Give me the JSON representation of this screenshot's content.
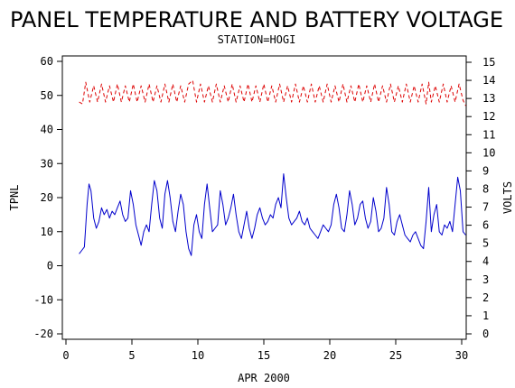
{
  "chart_data": {
    "type": "line",
    "title": "PANEL TEMPERATURE AND BATTERY VOLTAGE",
    "subtitle": "STATION=HOGI",
    "xlabel": "APR 2000",
    "ylabel_left": "TPNL",
    "ylabel_right": "VOLTS",
    "xlim": [
      0,
      30
    ],
    "ylim_left": [
      -22,
      62
    ],
    "ylim_right": [
      0,
      15
    ],
    "x_ticks": [
      "0",
      "5",
      "10",
      "15",
      "20",
      "25",
      "30"
    ],
    "y_left_ticks": [
      "-20",
      "-10",
      "0",
      "10",
      "20",
      "30",
      "40",
      "50",
      "60"
    ],
    "y_right_ticks": [
      "0",
      "1",
      "2",
      "3",
      "4",
      "5",
      "6",
      "7",
      "8",
      "9",
      "10",
      "11",
      "12",
      "13",
      "14",
      "15"
    ],
    "colors": {
      "temperature": "#0000cc",
      "voltage": "#dd0000",
      "axes": "#000000"
    },
    "grid": false,
    "series": [
      {
        "axis": "left",
        "style": "solid",
        "color": "#0000cc",
        "points": [
          [
            1.0,
            3.5
          ],
          [
            1.2,
            4.5
          ],
          [
            1.4,
            5.5
          ],
          [
            1.6,
            18
          ],
          [
            1.75,
            24
          ],
          [
            1.9,
            22
          ],
          [
            2.1,
            14
          ],
          [
            2.3,
            11
          ],
          [
            2.5,
            13
          ],
          [
            2.7,
            17
          ],
          [
            2.9,
            15
          ],
          [
            3.1,
            16.5
          ],
          [
            3.3,
            14
          ],
          [
            3.5,
            16
          ],
          [
            3.7,
            15
          ],
          [
            3.9,
            17
          ],
          [
            4.1,
            19
          ],
          [
            4.3,
            15
          ],
          [
            4.5,
            13
          ],
          [
            4.7,
            14
          ],
          [
            4.9,
            22
          ],
          [
            5.1,
            18
          ],
          [
            5.3,
            12
          ],
          [
            5.5,
            9
          ],
          [
            5.7,
            6
          ],
          [
            5.9,
            10
          ],
          [
            6.1,
            12
          ],
          [
            6.3,
            10
          ],
          [
            6.5,
            18
          ],
          [
            6.7,
            25
          ],
          [
            6.9,
            22
          ],
          [
            7.1,
            14
          ],
          [
            7.3,
            11
          ],
          [
            7.5,
            21
          ],
          [
            7.7,
            25
          ],
          [
            7.9,
            20
          ],
          [
            8.1,
            13
          ],
          [
            8.3,
            10
          ],
          [
            8.5,
            16
          ],
          [
            8.7,
            21
          ],
          [
            8.9,
            18
          ],
          [
            9.1,
            10
          ],
          [
            9.3,
            5
          ],
          [
            9.5,
            3
          ],
          [
            9.7,
            12
          ],
          [
            9.9,
            15
          ],
          [
            10.1,
            10
          ],
          [
            10.3,
            8
          ],
          [
            10.5,
            18
          ],
          [
            10.7,
            24
          ],
          [
            10.9,
            17
          ],
          [
            11.1,
            10
          ],
          [
            11.3,
            11
          ],
          [
            11.5,
            12
          ],
          [
            11.7,
            22
          ],
          [
            11.9,
            18
          ],
          [
            12.1,
            12
          ],
          [
            12.3,
            14
          ],
          [
            12.5,
            17
          ],
          [
            12.7,
            21
          ],
          [
            12.9,
            15
          ],
          [
            13.1,
            10
          ],
          [
            13.3,
            8
          ],
          [
            13.5,
            12
          ],
          [
            13.7,
            16
          ],
          [
            13.9,
            11
          ],
          [
            14.1,
            8
          ],
          [
            14.3,
            11
          ],
          [
            14.5,
            15
          ],
          [
            14.7,
            17
          ],
          [
            14.9,
            14
          ],
          [
            15.1,
            12
          ],
          [
            15.3,
            13
          ],
          [
            15.5,
            15
          ],
          [
            15.7,
            14
          ],
          [
            15.9,
            18
          ],
          [
            16.1,
            20
          ],
          [
            16.3,
            17
          ],
          [
            16.5,
            27
          ],
          [
            16.7,
            20
          ],
          [
            16.9,
            14
          ],
          [
            17.1,
            12
          ],
          [
            17.3,
            13
          ],
          [
            17.5,
            14
          ],
          [
            17.7,
            16
          ],
          [
            17.9,
            13
          ],
          [
            18.1,
            12
          ],
          [
            18.3,
            14
          ],
          [
            18.5,
            11
          ],
          [
            18.7,
            10
          ],
          [
            18.9,
            9
          ],
          [
            19.1,
            8
          ],
          [
            19.3,
            10
          ],
          [
            19.5,
            12
          ],
          [
            19.7,
            11
          ],
          [
            19.9,
            10
          ],
          [
            20.1,
            12
          ],
          [
            20.3,
            18
          ],
          [
            20.5,
            21
          ],
          [
            20.7,
            17
          ],
          [
            20.9,
            11
          ],
          [
            21.1,
            10
          ],
          [
            21.3,
            15
          ],
          [
            21.5,
            22
          ],
          [
            21.7,
            18
          ],
          [
            21.9,
            12
          ],
          [
            22.1,
            14
          ],
          [
            22.3,
            18
          ],
          [
            22.5,
            19
          ],
          [
            22.7,
            14
          ],
          [
            22.9,
            11
          ],
          [
            23.1,
            13
          ],
          [
            23.3,
            20
          ],
          [
            23.5,
            16
          ],
          [
            23.7,
            10
          ],
          [
            23.9,
            11
          ],
          [
            24.1,
            14
          ],
          [
            24.3,
            23
          ],
          [
            24.5,
            18
          ],
          [
            24.7,
            10
          ],
          [
            24.9,
            9
          ],
          [
            25.1,
            13
          ],
          [
            25.3,
            15
          ],
          [
            25.5,
            12
          ],
          [
            25.7,
            9
          ],
          [
            25.9,
            8
          ],
          [
            26.1,
            7
          ],
          [
            26.3,
            9
          ],
          [
            26.5,
            10
          ],
          [
            26.7,
            8
          ],
          [
            26.9,
            6
          ],
          [
            27.1,
            5
          ],
          [
            27.3,
            13
          ],
          [
            27.5,
            23
          ],
          [
            27.7,
            10
          ],
          [
            27.9,
            15
          ],
          [
            28.1,
            18
          ],
          [
            28.3,
            10
          ],
          [
            28.5,
            9
          ],
          [
            28.7,
            12
          ],
          [
            28.9,
            11
          ],
          [
            29.1,
            13
          ],
          [
            29.3,
            10
          ],
          [
            29.5,
            18
          ],
          [
            29.7,
            26
          ],
          [
            29.9,
            22
          ],
          [
            30.1,
            10
          ],
          [
            30.3,
            9
          ]
        ]
      },
      {
        "axis": "right",
        "style": "dashed",
        "color": "#dd0000",
        "points": [
          [
            1.0,
            12.8
          ],
          [
            1.25,
            12.7
          ],
          [
            1.5,
            13.9
          ],
          [
            1.8,
            12.8
          ],
          [
            2.1,
            13.7
          ],
          [
            2.4,
            12.8
          ],
          [
            2.7,
            13.8
          ],
          [
            3.0,
            12.8
          ],
          [
            3.3,
            13.7
          ],
          [
            3.6,
            12.8
          ],
          [
            3.9,
            13.8
          ],
          [
            4.2,
            12.8
          ],
          [
            4.5,
            13.7
          ],
          [
            4.8,
            12.8
          ],
          [
            5.1,
            13.8
          ],
          [
            5.4,
            12.8
          ],
          [
            5.7,
            13.7
          ],
          [
            6.0,
            12.8
          ],
          [
            6.3,
            13.8
          ],
          [
            6.6,
            12.8
          ],
          [
            6.9,
            13.7
          ],
          [
            7.2,
            12.8
          ],
          [
            7.5,
            13.8
          ],
          [
            7.8,
            12.8
          ],
          [
            8.1,
            13.8
          ],
          [
            8.4,
            12.8
          ],
          [
            8.7,
            13.7
          ],
          [
            9.0,
            12.8
          ],
          [
            9.3,
            13.8
          ],
          [
            9.6,
            14.0
          ],
          [
            9.9,
            12.8
          ],
          [
            10.2,
            13.8
          ],
          [
            10.5,
            12.8
          ],
          [
            10.8,
            13.7
          ],
          [
            11.1,
            12.8
          ],
          [
            11.4,
            13.8
          ],
          [
            11.7,
            12.8
          ],
          [
            12.0,
            13.7
          ],
          [
            12.3,
            12.8
          ],
          [
            12.6,
            13.8
          ],
          [
            12.9,
            12.8
          ],
          [
            13.2,
            13.7
          ],
          [
            13.5,
            12.8
          ],
          [
            13.8,
            13.8
          ],
          [
            14.1,
            12.8
          ],
          [
            14.4,
            13.7
          ],
          [
            14.7,
            12.8
          ],
          [
            15.0,
            13.8
          ],
          [
            15.3,
            12.8
          ],
          [
            15.6,
            13.7
          ],
          [
            15.9,
            12.8
          ],
          [
            16.2,
            13.8
          ],
          [
            16.5,
            12.8
          ],
          [
            16.8,
            13.7
          ],
          [
            17.1,
            12.8
          ],
          [
            17.4,
            13.8
          ],
          [
            17.7,
            12.8
          ],
          [
            18.0,
            13.7
          ],
          [
            18.3,
            12.8
          ],
          [
            18.6,
            13.8
          ],
          [
            18.9,
            12.8
          ],
          [
            19.2,
            13.7
          ],
          [
            19.5,
            12.8
          ],
          [
            19.8,
            13.8
          ],
          [
            20.1,
            12.8
          ],
          [
            20.4,
            13.7
          ],
          [
            20.7,
            12.8
          ],
          [
            21.0,
            13.8
          ],
          [
            21.3,
            12.8
          ],
          [
            21.6,
            13.7
          ],
          [
            21.9,
            12.8
          ],
          [
            22.2,
            13.8
          ],
          [
            22.5,
            12.8
          ],
          [
            22.8,
            13.7
          ],
          [
            23.1,
            12.8
          ],
          [
            23.4,
            13.8
          ],
          [
            23.7,
            12.8
          ],
          [
            24.0,
            13.7
          ],
          [
            24.3,
            12.8
          ],
          [
            24.6,
            13.8
          ],
          [
            24.9,
            12.8
          ],
          [
            25.2,
            13.7
          ],
          [
            25.5,
            12.8
          ],
          [
            25.8,
            13.8
          ],
          [
            26.1,
            12.8
          ],
          [
            26.4,
            13.7
          ],
          [
            26.7,
            12.8
          ],
          [
            27.0,
            13.8
          ],
          [
            27.3,
            12.7
          ],
          [
            27.5,
            13.9
          ],
          [
            27.7,
            12.8
          ],
          [
            28.0,
            13.7
          ],
          [
            28.3,
            12.8
          ],
          [
            28.6,
            13.8
          ],
          [
            28.9,
            12.8
          ],
          [
            29.2,
            13.7
          ],
          [
            29.5,
            12.8
          ],
          [
            29.8,
            13.8
          ],
          [
            30.1,
            12.9
          ],
          [
            30.3,
            12.6
          ]
        ]
      }
    ]
  }
}
